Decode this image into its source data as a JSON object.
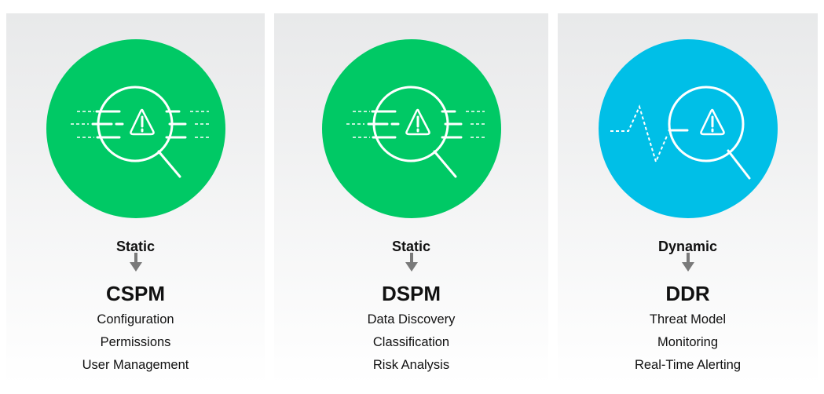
{
  "colors": {
    "green": "#00c965",
    "blue": "#00bfe7",
    "arrow": "#7a7a7a"
  },
  "panels": [
    {
      "mode": "Static",
      "name": "CSPM",
      "icon": "magnifier-warning-lines-icon",
      "color": "green",
      "items": [
        "Configuration",
        "Permissions",
        "User Management"
      ]
    },
    {
      "mode": "Static",
      "name": "DSPM",
      "icon": "magnifier-warning-lines-icon",
      "color": "green",
      "items": [
        "Data Discovery",
        "Classification",
        "Risk Analysis"
      ]
    },
    {
      "mode": "Dynamic",
      "name": "DDR",
      "icon": "magnifier-warning-pulse-icon",
      "color": "blue",
      "items": [
        "Threat Model",
        "Monitoring",
        "Real-Time Alerting"
      ]
    }
  ]
}
